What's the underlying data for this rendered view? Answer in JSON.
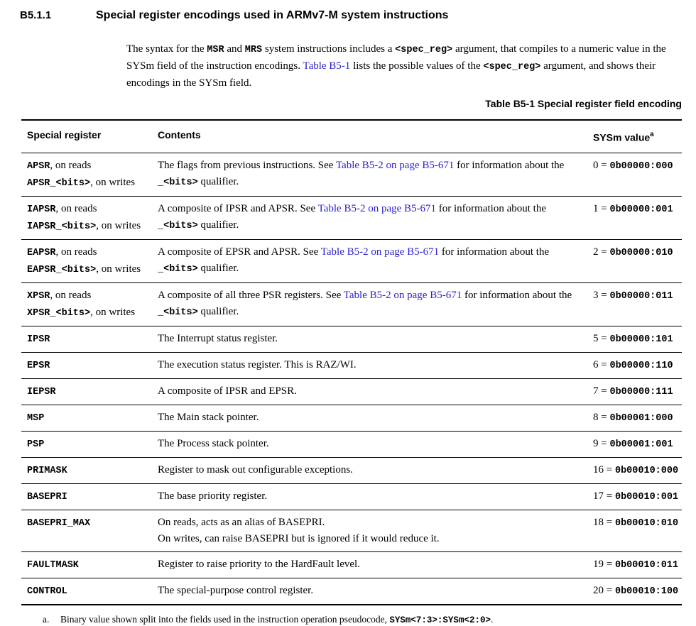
{
  "colors": {
    "link_blue": "#2a1fcc"
  },
  "section": {
    "number": "B5.1.1",
    "title": "Special register encodings used in ARMv7-M system instructions"
  },
  "intro": [
    [
      {
        "t": "The syntax for the "
      },
      {
        "t": "MSR",
        "s": "m"
      },
      {
        "t": " and "
      },
      {
        "t": "MRS",
        "s": "m"
      },
      {
        "t": " system instructions includes a "
      },
      {
        "t": "<spec_reg>",
        "s": "m"
      },
      {
        "t": " argument, that compiles to a numeric value in the SYSm field of the instruction encodings. "
      },
      {
        "t": "Table B5-1",
        "s": "l"
      },
      {
        "t": " lists the possible values of the "
      },
      {
        "t": "<spec_reg>",
        "s": "m"
      },
      {
        "t": " argument, and shows their encodings in the SYSm field."
      }
    ]
  ],
  "table": {
    "caption": "Table B5-1 Special register field encoding",
    "headers": {
      "special_register": "Special register",
      "contents": "Contents",
      "sysm_value": "SYSm value",
      "sysm_footnote_ref": "a"
    },
    "rows": [
      {
        "reg": [
          [
            {
              "t": "APSR",
              "s": "m"
            },
            {
              "t": ", on reads"
            }
          ],
          [
            {
              "t": "APSR_<bits>",
              "s": "m"
            },
            {
              "t": ", on writes"
            }
          ]
        ],
        "contents": [
          [
            {
              "t": "The flags from previous instructions. See "
            },
            {
              "t": "Table B5-2 on page B5-671",
              "s": "l"
            },
            {
              "t": " for information about the "
            },
            {
              "t": "_<bits>",
              "s": "m"
            },
            {
              "t": " qualifier."
            }
          ]
        ],
        "sysm": [
          [
            {
              "t": "0 = "
            },
            {
              "t": "0b00000:000",
              "s": "m"
            }
          ]
        ]
      },
      {
        "reg": [
          [
            {
              "t": "IAPSR",
              "s": "m"
            },
            {
              "t": ", on reads"
            }
          ],
          [
            {
              "t": "IAPSR_<bits>",
              "s": "m"
            },
            {
              "t": ", on writes"
            }
          ]
        ],
        "contents": [
          [
            {
              "t": "A composite of IPSR and APSR. See "
            },
            {
              "t": "Table B5-2 on page B5-671",
              "s": "l"
            },
            {
              "t": " for information about the "
            },
            {
              "t": "_<bits>",
              "s": "m"
            },
            {
              "t": " qualifier."
            }
          ]
        ],
        "sysm": [
          [
            {
              "t": "1 = "
            },
            {
              "t": "0b00000:001",
              "s": "m"
            }
          ]
        ]
      },
      {
        "reg": [
          [
            {
              "t": "EAPSR",
              "s": "m"
            },
            {
              "t": ", on reads"
            }
          ],
          [
            {
              "t": "EAPSR_<bits>",
              "s": "m"
            },
            {
              "t": ", on writes"
            }
          ]
        ],
        "contents": [
          [
            {
              "t": "A composite of EPSR and APSR. See "
            },
            {
              "t": "Table B5-2 on page B5-671",
              "s": "l"
            },
            {
              "t": " for information about the "
            },
            {
              "t": "_<bits>",
              "s": "m"
            },
            {
              "t": " qualifier."
            }
          ]
        ],
        "sysm": [
          [
            {
              "t": "2 = "
            },
            {
              "t": "0b00000:010",
              "s": "m"
            }
          ]
        ]
      },
      {
        "reg": [
          [
            {
              "t": "XPSR",
              "s": "m"
            },
            {
              "t": ", on reads"
            }
          ],
          [
            {
              "t": "XPSR_<bits>",
              "s": "m"
            },
            {
              "t": ", on writes"
            }
          ]
        ],
        "contents": [
          [
            {
              "t": "A composite of all three PSR registers. See "
            },
            {
              "t": "Table B5-2 on page B5-671",
              "s": "l"
            },
            {
              "t": " for information about the "
            },
            {
              "t": "_<bits>",
              "s": "m"
            },
            {
              "t": " qualifier."
            }
          ]
        ],
        "sysm": [
          [
            {
              "t": "3 = "
            },
            {
              "t": "0b00000:011",
              "s": "m"
            }
          ]
        ]
      },
      {
        "reg": [
          [
            {
              "t": "IPSR",
              "s": "m"
            }
          ]
        ],
        "contents": [
          [
            {
              "t": "The Interrupt status register."
            }
          ]
        ],
        "sysm": [
          [
            {
              "t": "5 = "
            },
            {
              "t": "0b00000:101",
              "s": "m"
            }
          ]
        ]
      },
      {
        "reg": [
          [
            {
              "t": "EPSR",
              "s": "m"
            }
          ]
        ],
        "contents": [
          [
            {
              "t": "The execution status register. This is RAZ/WI."
            }
          ]
        ],
        "sysm": [
          [
            {
              "t": "6 = "
            },
            {
              "t": "0b00000:110",
              "s": "m"
            }
          ]
        ]
      },
      {
        "reg": [
          [
            {
              "t": "IEPSR",
              "s": "m"
            }
          ]
        ],
        "contents": [
          [
            {
              "t": "A composite of IPSR and EPSR."
            }
          ]
        ],
        "sysm": [
          [
            {
              "t": "7 = "
            },
            {
              "t": "0b00000:111",
              "s": "m"
            }
          ]
        ]
      },
      {
        "reg": [
          [
            {
              "t": "MSP",
              "s": "m"
            }
          ]
        ],
        "contents": [
          [
            {
              "t": "The Main stack pointer."
            }
          ]
        ],
        "sysm": [
          [
            {
              "t": "8 = "
            },
            {
              "t": "0b00001:000",
              "s": "m"
            }
          ]
        ]
      },
      {
        "reg": [
          [
            {
              "t": "PSP",
              "s": "m"
            }
          ]
        ],
        "contents": [
          [
            {
              "t": "The Process stack pointer."
            }
          ]
        ],
        "sysm": [
          [
            {
              "t": "9 = "
            },
            {
              "t": "0b00001:001",
              "s": "m"
            }
          ]
        ]
      },
      {
        "reg": [
          [
            {
              "t": "PRIMASK",
              "s": "m"
            }
          ]
        ],
        "contents": [
          [
            {
              "t": "Register to mask out configurable exceptions."
            }
          ]
        ],
        "sysm": [
          [
            {
              "t": "16 = "
            },
            {
              "t": "0b00010:000",
              "s": "m"
            }
          ]
        ]
      },
      {
        "reg": [
          [
            {
              "t": "BASEPRI",
              "s": "m"
            }
          ]
        ],
        "contents": [
          [
            {
              "t": "The base priority register."
            }
          ]
        ],
        "sysm": [
          [
            {
              "t": "17 = "
            },
            {
              "t": "0b00010:001",
              "s": "m"
            }
          ]
        ]
      },
      {
        "reg": [
          [
            {
              "t": "BASEPRI_MAX",
              "s": "m"
            }
          ]
        ],
        "contents": [
          [
            {
              "t": "On reads, acts as an alias of BASEPRI."
            }
          ],
          [
            {
              "t": "On writes, can raise BASEPRI but is ignored if it would reduce it."
            }
          ]
        ],
        "sysm": [
          [
            {
              "t": "18 = "
            },
            {
              "t": "0b00010:010",
              "s": "m"
            }
          ]
        ]
      },
      {
        "reg": [
          [
            {
              "t": "FAULTMASK",
              "s": "m"
            }
          ]
        ],
        "contents": [
          [
            {
              "t": "Register to raise priority to the HardFault level."
            }
          ]
        ],
        "sysm": [
          [
            {
              "t": "19 = "
            },
            {
              "t": "0b00010:011",
              "s": "m"
            }
          ]
        ]
      },
      {
        "reg": [
          [
            {
              "t": "CONTROL",
              "s": "m"
            }
          ]
        ],
        "contents": [
          [
            {
              "t": "The special-purpose control register."
            }
          ]
        ],
        "sysm": [
          [
            {
              "t": "20 = "
            },
            {
              "t": "0b00010:100",
              "s": "m"
            }
          ]
        ]
      }
    ]
  },
  "footnote": {
    "marker": "a.",
    "text": [
      [
        {
          "t": "Binary value shown split into the fields used in the instruction operation pseudocode, "
        },
        {
          "t": "SYSm<7:3>:SYSm<2:0>",
          "s": "m"
        },
        {
          "t": "."
        }
      ]
    ]
  }
}
